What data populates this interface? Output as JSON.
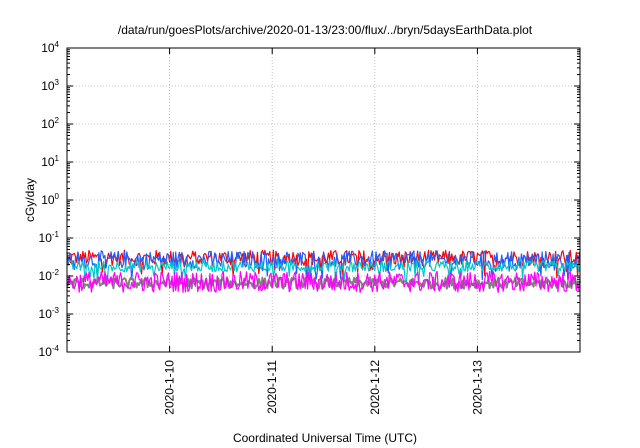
{
  "chart_data": {
    "type": "line",
    "title": "/data/run/goesPlots/archive/2020-01-13/23:00/flux/../bryn/5daysEarthData.plot",
    "xlabel": "Coordinated Universal Time (UTC)",
    "ylabel": "cGy/day",
    "yscale": "log",
    "ylim": [
      0.0001,
      10000
    ],
    "y_ticks": [
      {
        "base": "10",
        "exp": "-4",
        "value": 0.0001
      },
      {
        "base": "10",
        "exp": "-3",
        "value": 0.001
      },
      {
        "base": "10",
        "exp": "-2",
        "value": 0.01
      },
      {
        "base": "10",
        "exp": "-1",
        "value": 0.1
      },
      {
        "base": "10",
        "exp": "0",
        "value": 1
      },
      {
        "base": "10",
        "exp": "1",
        "value": 10
      },
      {
        "base": "10",
        "exp": "2",
        "value": 100
      },
      {
        "base": "10",
        "exp": "3",
        "value": 1000
      },
      {
        "base": "10",
        "exp": "4",
        "value": 10000
      }
    ],
    "xlim": [
      "2020-01-09T00:00",
      "2020-01-14T00:00"
    ],
    "x_ticks": [
      {
        "label": "2020-1-10",
        "value": "2020-01-10T00:00"
      },
      {
        "label": "2020-1-11",
        "value": "2020-01-11T00:00"
      },
      {
        "label": "2020-1-12",
        "value": "2020-01-12T00:00"
      },
      {
        "label": "2020-1-13",
        "value": "2020-01-13T00:00"
      }
    ],
    "grid": true,
    "series": [
      {
        "color": "#ff0000",
        "base": 0.03,
        "spread": 1.6,
        "dips": true
      },
      {
        "color": "#1f5fff",
        "base": 0.027,
        "spread": 1.7,
        "dips": true
      },
      {
        "color": "#00c8c8",
        "base": 0.018,
        "spread": 1.4,
        "dips": true
      },
      {
        "color": "#808080",
        "base": 0.0065,
        "spread": 1.4,
        "dips": false
      },
      {
        "color": "#ff00ff",
        "base": 0.007,
        "spread": 1.9,
        "dips": false
      }
    ]
  }
}
